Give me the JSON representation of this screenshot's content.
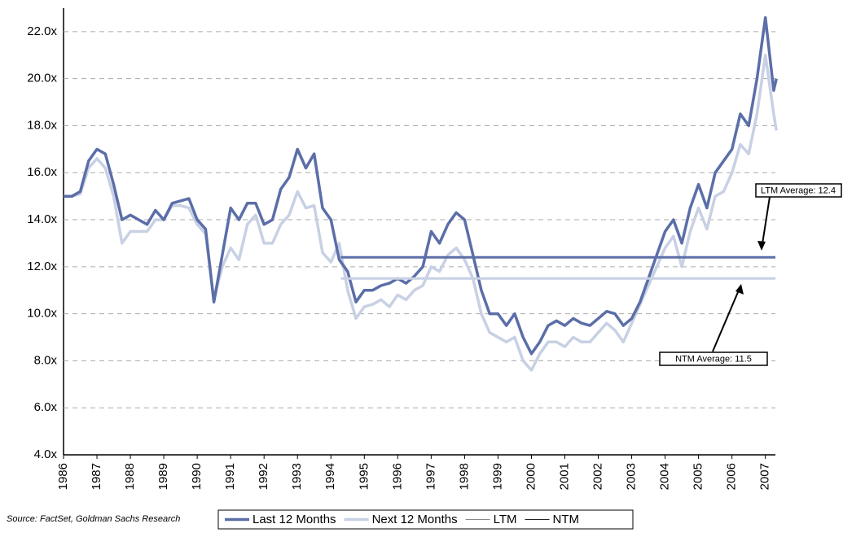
{
  "chart_data": {
    "type": "line",
    "source": "Source: FactSet, Goldman Sachs Research",
    "x": [
      1986,
      1986.25,
      1986.5,
      1986.75,
      1987,
      1987.25,
      1987.5,
      1987.75,
      1988,
      1988.25,
      1988.5,
      1988.75,
      1989,
      1989.25,
      1989.5,
      1989.75,
      1990,
      1990.25,
      1990.5,
      1990.75,
      1991,
      1991.25,
      1991.5,
      1991.75,
      1992,
      1992.25,
      1992.5,
      1992.75,
      1993,
      1993.25,
      1993.5,
      1993.75,
      1994,
      1994.25,
      1994.5,
      1994.75,
      1995,
      1995.25,
      1995.5,
      1995.75,
      1996,
      1996.25,
      1996.5,
      1996.75,
      1997,
      1997.25,
      1997.5,
      1997.75,
      1998,
      1998.25,
      1998.5,
      1998.75,
      1999,
      1999.25,
      1999.5,
      1999.75,
      2000,
      2000.25,
      2000.5,
      2000.75,
      2001,
      2001.25,
      2001.5,
      2001.75,
      2002,
      2002.25,
      2002.5,
      2002.75,
      2003,
      2003.25,
      2003.5,
      2003.75,
      2004,
      2004.25,
      2004.5,
      2004.75,
      2005,
      2005.25,
      2005.5,
      2005.75,
      2006,
      2006.25,
      2006.5,
      2006.75,
      2007,
      2007.25,
      2007.33
    ],
    "series": [
      {
        "name": "Last 12 Months",
        "color": "#5b6ea8",
        "values": [
          15.0,
          15.0,
          15.2,
          16.5,
          17.0,
          16.8,
          15.5,
          14.0,
          14.2,
          14.0,
          13.8,
          14.4,
          14.0,
          14.7,
          14.8,
          14.9,
          14.0,
          13.6,
          10.5,
          12.5,
          14.5,
          14.0,
          14.7,
          14.7,
          13.8,
          14.0,
          15.3,
          15.8,
          17.0,
          16.2,
          16.8,
          14.5,
          14.0,
          12.3,
          11.8,
          10.5,
          11.0,
          11.0,
          11.2,
          11.3,
          11.5,
          11.3,
          11.6,
          12.0,
          13.5,
          13.0,
          13.8,
          14.3,
          14.0,
          12.5,
          11.0,
          10.0,
          10.0,
          9.5,
          10.0,
          9.0,
          8.3,
          8.8,
          9.5,
          9.7,
          9.5,
          9.8,
          9.6,
          9.5,
          9.8,
          10.1,
          10.0,
          9.5,
          9.8,
          10.5,
          11.5,
          12.5,
          13.5,
          14.0,
          13.0,
          14.5,
          15.5,
          14.5,
          16.0,
          16.5,
          17.0,
          18.5,
          18.0,
          20.0,
          22.6,
          19.5,
          20.0
        ]
      },
      {
        "name": "Next 12 Months",
        "color": "#c8d0e4",
        "values": [
          15.0,
          15.0,
          15.1,
          16.2,
          16.6,
          16.2,
          15.0,
          13.0,
          13.5,
          13.5,
          13.5,
          14.0,
          14.0,
          14.6,
          14.6,
          14.5,
          13.8,
          13.4,
          10.6,
          12.0,
          12.8,
          12.3,
          13.8,
          14.2,
          13.0,
          13.0,
          13.8,
          14.2,
          15.2,
          14.5,
          14.6,
          12.6,
          12.2,
          13.0,
          11.0,
          9.8,
          10.3,
          10.4,
          10.6,
          10.3,
          10.8,
          10.6,
          11.0,
          11.2,
          12.0,
          11.8,
          12.5,
          12.8,
          12.3,
          11.5,
          10.0,
          9.2,
          9.0,
          8.8,
          9.0,
          8.0,
          7.6,
          8.3,
          8.8,
          8.8,
          8.6,
          9.0,
          8.8,
          8.8,
          9.2,
          9.6,
          9.3,
          8.8,
          9.6,
          10.4,
          11.2,
          12.0,
          12.8,
          13.3,
          12.0,
          13.5,
          14.5,
          13.6,
          15.0,
          15.2,
          16.0,
          17.2,
          16.8,
          18.5,
          21.0,
          18.5,
          17.8
        ]
      }
    ],
    "reference_lines": [
      {
        "name": "LTM",
        "value": 12.4,
        "x_start": 1994.3,
        "color": "#5b6ea8",
        "annotation": "LTM Average: 12.4"
      },
      {
        "name": "NTM",
        "value": 11.5,
        "x_start": 1994.3,
        "color": "#c8d0e4",
        "annotation": "NTM Average: 11.5"
      }
    ],
    "xlim": [
      1986,
      2007.3
    ],
    "xticks": [
      1986,
      1987,
      1988,
      1989,
      1990,
      1991,
      1992,
      1993,
      1994,
      1995,
      1996,
      1997,
      1998,
      1999,
      2000,
      2001,
      2002,
      2003,
      2004,
      2005,
      2006,
      2007
    ],
    "ylim": [
      4,
      23
    ],
    "yticks": [
      {
        "value": 4,
        "label": "4.0x"
      },
      {
        "value": 6,
        "label": "6.0x"
      },
      {
        "value": 8,
        "label": "8.0x"
      },
      {
        "value": 10,
        "label": "10.0x"
      },
      {
        "value": 12,
        "label": "12.0x"
      },
      {
        "value": 14,
        "label": "14.0x"
      },
      {
        "value": 16,
        "label": "16.0x"
      },
      {
        "value": 18,
        "label": "18.0x"
      },
      {
        "value": 20,
        "label": "20.0x"
      },
      {
        "value": 22,
        "label": "22.0x"
      }
    ],
    "grid": true
  }
}
